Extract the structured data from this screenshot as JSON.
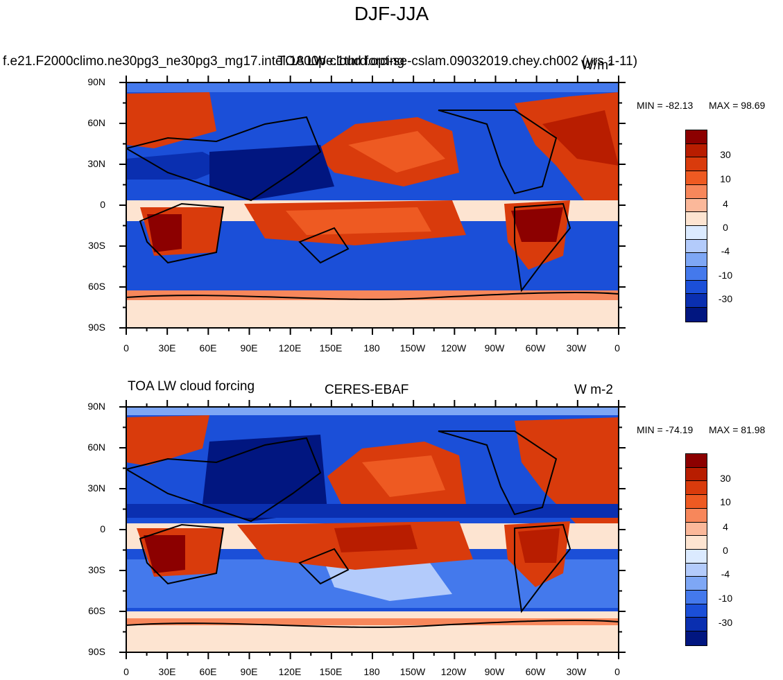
{
  "figure": {
    "title": "DJF-JJA"
  },
  "colormap": {
    "colors": [
      "#8c0000",
      "#b81d00",
      "#d93b0c",
      "#ee5a22",
      "#f7875b",
      "#fbb89a",
      "#fde4d1",
      "#dbeaff",
      "#b3cbfb",
      "#7ea7f5",
      "#4479ec",
      "#1b4fd8",
      "#0a2fb0",
      "#011680"
    ],
    "labels": [
      "30",
      "10",
      "4",
      "0",
      "-4",
      "-10",
      "-30"
    ]
  },
  "panels": [
    {
      "left_title": "f.e21.F2000climo.ne30pg3_ne30pg3_mg17.intel.1800pe.1thrd.opt-se-cslam.09032019.chey.ch002 (yrs 1-11)",
      "center_title": "TOA LW cloud forcing",
      "right_title": "W/m²",
      "min_label": "MIN = -82.13",
      "max_label": "MAX =  98.69"
    },
    {
      "left_title": "TOA LW cloud forcing",
      "center_title": "CERES-EBAF",
      "right_title": "W m-2",
      "min_label": "MIN = -74.19",
      "max_label": "MAX =  81.98"
    }
  ],
  "axes": {
    "lat_labels": [
      "90N",
      "60N",
      "30N",
      "0",
      "30S",
      "60S",
      "90S"
    ],
    "lon_labels": [
      "0",
      "30E",
      "60E",
      "90E",
      "120E",
      "150E",
      "180",
      "150W",
      "120W",
      "90W",
      "60W",
      "30W",
      "0"
    ]
  }
}
